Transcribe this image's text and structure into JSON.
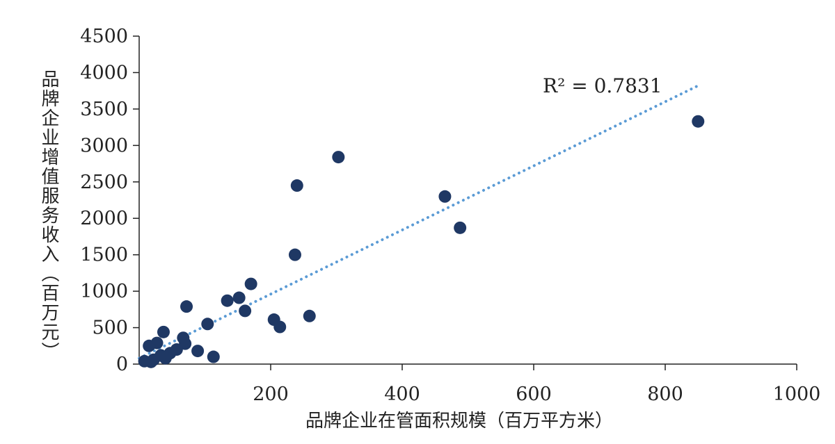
{
  "chart_data": {
    "type": "scatter",
    "xlabel": "品牌企业在管面积规模（百万平方米）",
    "ylabel": "品牌企业增值服务收入（百万元）",
    "xlim": [
      0,
      1000
    ],
    "ylim": [
      0,
      4500
    ],
    "x_ticks": [
      200,
      400,
      600,
      800,
      1000
    ],
    "y_ticks": [
      0,
      500,
      1000,
      1500,
      2000,
      2500,
      3000,
      3500,
      4000,
      4500
    ],
    "grid": false,
    "legend": "none",
    "marker_color": "#1f3864",
    "trendline": {
      "style": "dotted",
      "color": "#5b9bd5",
      "x": [
        0,
        850
      ],
      "y": [
        80,
        3820
      ],
      "label": "R² = 0.7831"
    },
    "points": [
      {
        "x": 850,
        "y": 3330
      },
      {
        "x": 303,
        "y": 2840
      },
      {
        "x": 240,
        "y": 2450
      },
      {
        "x": 465,
        "y": 2300
      },
      {
        "x": 488,
        "y": 1870
      },
      {
        "x": 237,
        "y": 1500
      },
      {
        "x": 170,
        "y": 1100
      },
      {
        "x": 152,
        "y": 910
      },
      {
        "x": 134,
        "y": 870
      },
      {
        "x": 72,
        "y": 790
      },
      {
        "x": 161,
        "y": 730
      },
      {
        "x": 259,
        "y": 660
      },
      {
        "x": 205,
        "y": 610
      },
      {
        "x": 104,
        "y": 550
      },
      {
        "x": 214,
        "y": 510
      },
      {
        "x": 37,
        "y": 440
      },
      {
        "x": 67,
        "y": 360
      },
      {
        "x": 70,
        "y": 280
      },
      {
        "x": 27,
        "y": 290
      },
      {
        "x": 15,
        "y": 250
      },
      {
        "x": 57,
        "y": 200
      },
      {
        "x": 89,
        "y": 180
      },
      {
        "x": 47,
        "y": 150
      },
      {
        "x": 33,
        "y": 120
      },
      {
        "x": 113,
        "y": 100
      },
      {
        "x": 40,
        "y": 80
      },
      {
        "x": 22,
        "y": 60
      },
      {
        "x": 8,
        "y": 40
      },
      {
        "x": 18,
        "y": 30
      }
    ]
  }
}
